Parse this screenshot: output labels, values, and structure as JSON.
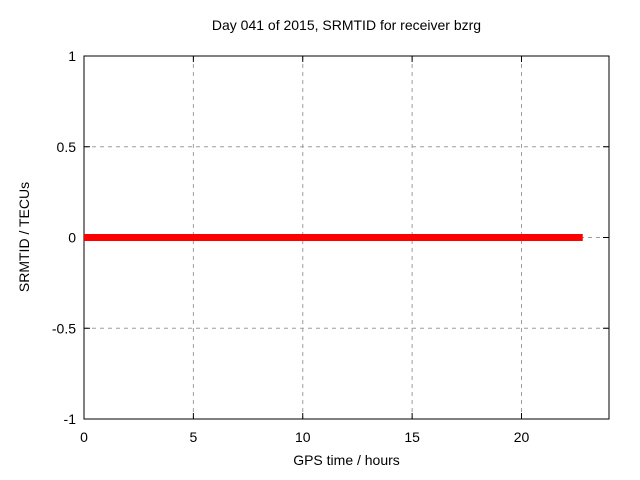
{
  "figure": {
    "background": "#ffffff",
    "text_color": "#000000"
  },
  "chart_data": {
    "type": "line",
    "title": "Day 041 of 2015, SRMTID for receiver bzrg",
    "xlabel": "GPS time / hours",
    "ylabel": "SRMTID / TECUs",
    "xlim": [
      0,
      24
    ],
    "ylim": [
      -1,
      1
    ],
    "xticks": [
      0,
      5,
      10,
      15,
      20
    ],
    "yticks": [
      -1,
      -0.5,
      0,
      0.5,
      1
    ],
    "grid": true,
    "grid_color": "#9e9e9e",
    "axis_color": "#000000",
    "legend_position": "none",
    "series": [
      {
        "name": "SRMTID",
        "color": "#ff0000",
        "line_width": 7,
        "points": [
          [
            0,
            0
          ],
          [
            22.8,
            0
          ]
        ]
      }
    ]
  }
}
